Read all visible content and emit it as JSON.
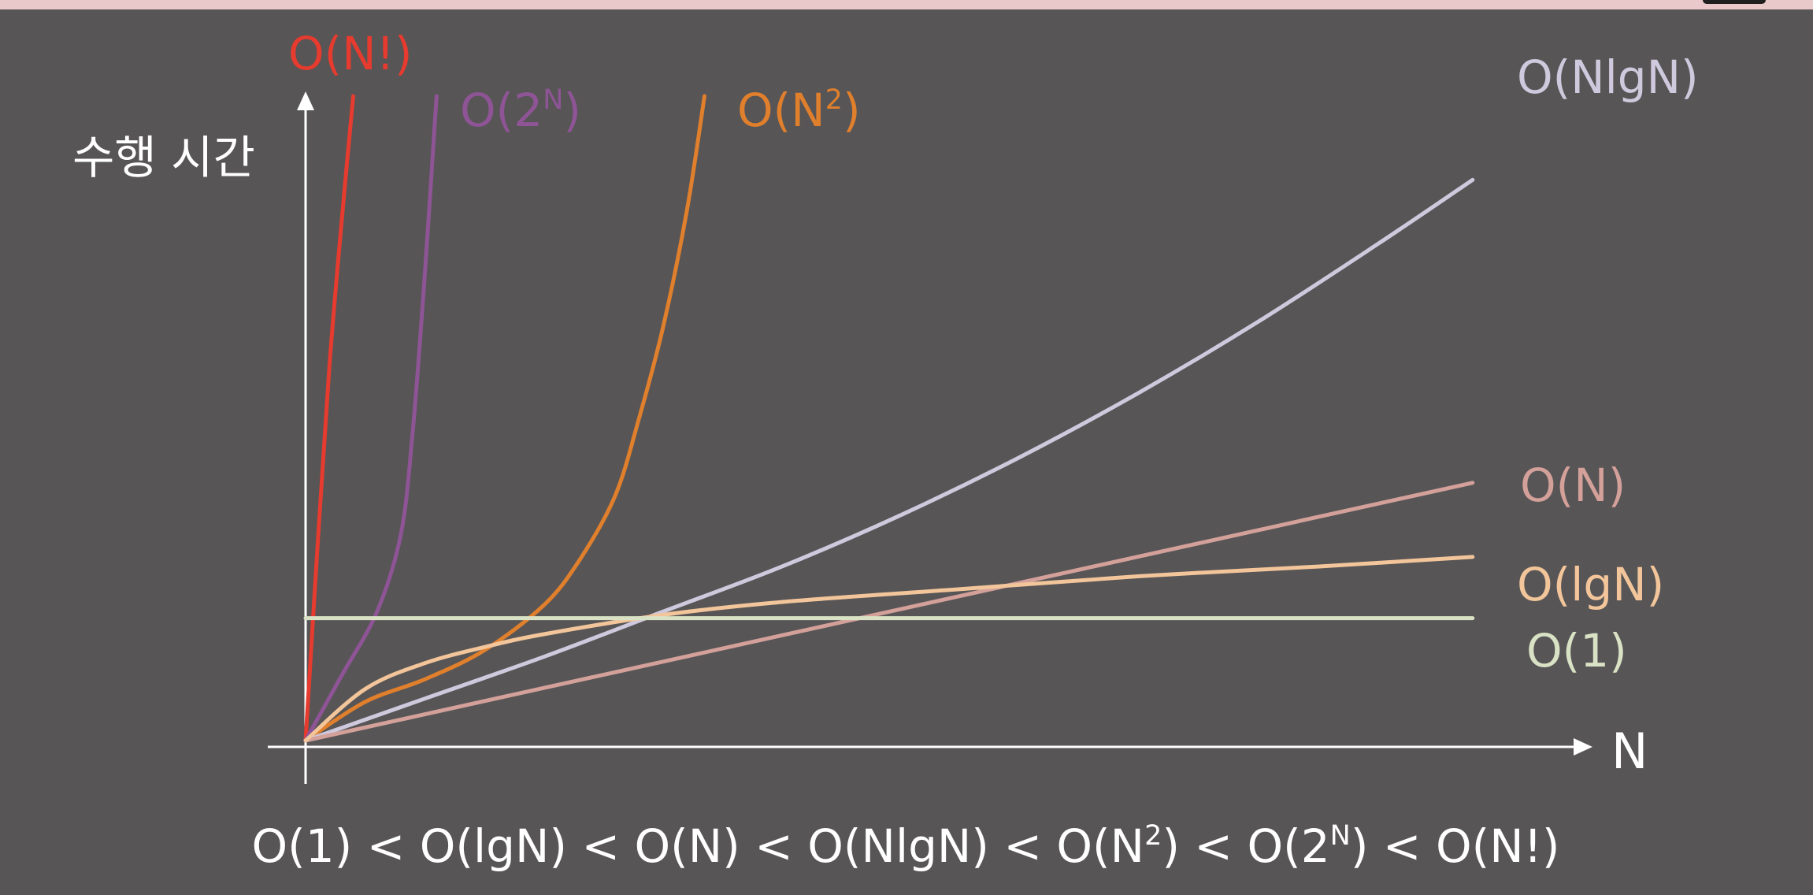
{
  "colors": {
    "background": "#575556",
    "axis": "#ffffff",
    "topbar": "#e9c9c9"
  },
  "chart_data": {
    "type": "line",
    "title": "",
    "xlabel": "N",
    "ylabel": "수행 시간",
    "xlim": [
      0,
      100
    ],
    "ylim": [
      0,
      100
    ],
    "grid": false,
    "legend": "inline labels at line ends",
    "series": [
      {
        "name": "O(N!)",
        "label_base": "O(N!)",
        "label_sup": "",
        "label_tail": "",
        "color": "#e63b2e",
        "x": [
          0,
          1,
          2,
          3,
          4
        ],
        "y": [
          0,
          30,
          58,
          80,
          100
        ]
      },
      {
        "name": "O(2^N)",
        "label_base": "O(2",
        "label_sup": "N",
        "label_tail": ")",
        "color": "#8e5496",
        "x": [
          0,
          3,
          6,
          8,
          9,
          10,
          11
        ],
        "y": [
          0,
          10,
          20,
          32,
          48,
          72,
          100
        ]
      },
      {
        "name": "O(N^2)",
        "label_base": "O(N",
        "label_sup": "2",
        "label_tail": ")",
        "color": "#e07f2c",
        "x": [
          0,
          5,
          10,
          15,
          20,
          23,
          26,
          28,
          30,
          32,
          33.5
        ],
        "y": [
          0,
          6,
          9.5,
          14,
          21,
          28,
          38,
          50,
          64,
          82,
          100
        ]
      },
      {
        "name": "O(NlgN)",
        "label_base": "O(NlgN)",
        "label_sup": "",
        "label_tail": "",
        "color": "#cfc9dd",
        "x": [
          0,
          10,
          20,
          30,
          40,
          50,
          60,
          70,
          80,
          90,
          98
        ],
        "y": [
          0,
          6.5,
          13,
          20,
          27,
          35,
          44,
          54,
          65,
          77,
          87
        ]
      },
      {
        "name": "O(N)",
        "label_base": "O(N)",
        "label_sup": "",
        "label_tail": "",
        "color": "#d3a09a",
        "x": [
          0,
          98
        ],
        "y": [
          0,
          40
        ]
      },
      {
        "name": "O(lgN)",
        "label_base": "O(lgN)",
        "label_sup": "",
        "label_tail": "",
        "color": "#f3c59a",
        "x": [
          0,
          5,
          10,
          15,
          20,
          30,
          40,
          55,
          70,
          85,
          98
        ],
        "y": [
          0,
          8,
          12,
          14.5,
          16.5,
          19.5,
          21.5,
          23.5,
          25.5,
          27,
          28.5
        ]
      },
      {
        "name": "O(1)",
        "label_base": "O(1)",
        "label_sup": "",
        "label_tail": "",
        "color": "#d9e2c4",
        "x": [
          0,
          98
        ],
        "y": [
          19,
          19
        ]
      }
    ]
  },
  "formula": [
    {
      "base": "O(1)",
      "sup": "",
      "tail": ""
    },
    {
      "base": "O(lgN)",
      "sup": "",
      "tail": ""
    },
    {
      "base": "O(N)",
      "sup": "",
      "tail": ""
    },
    {
      "base": "O(NlgN)",
      "sup": "",
      "tail": ""
    },
    {
      "base": "O(N",
      "sup": "2",
      "tail": ")"
    },
    {
      "base": "O(2",
      "sup": "N",
      "tail": ")"
    },
    {
      "base": "O(N!)",
      "sup": "",
      "tail": ""
    }
  ],
  "formula_separator": "<"
}
